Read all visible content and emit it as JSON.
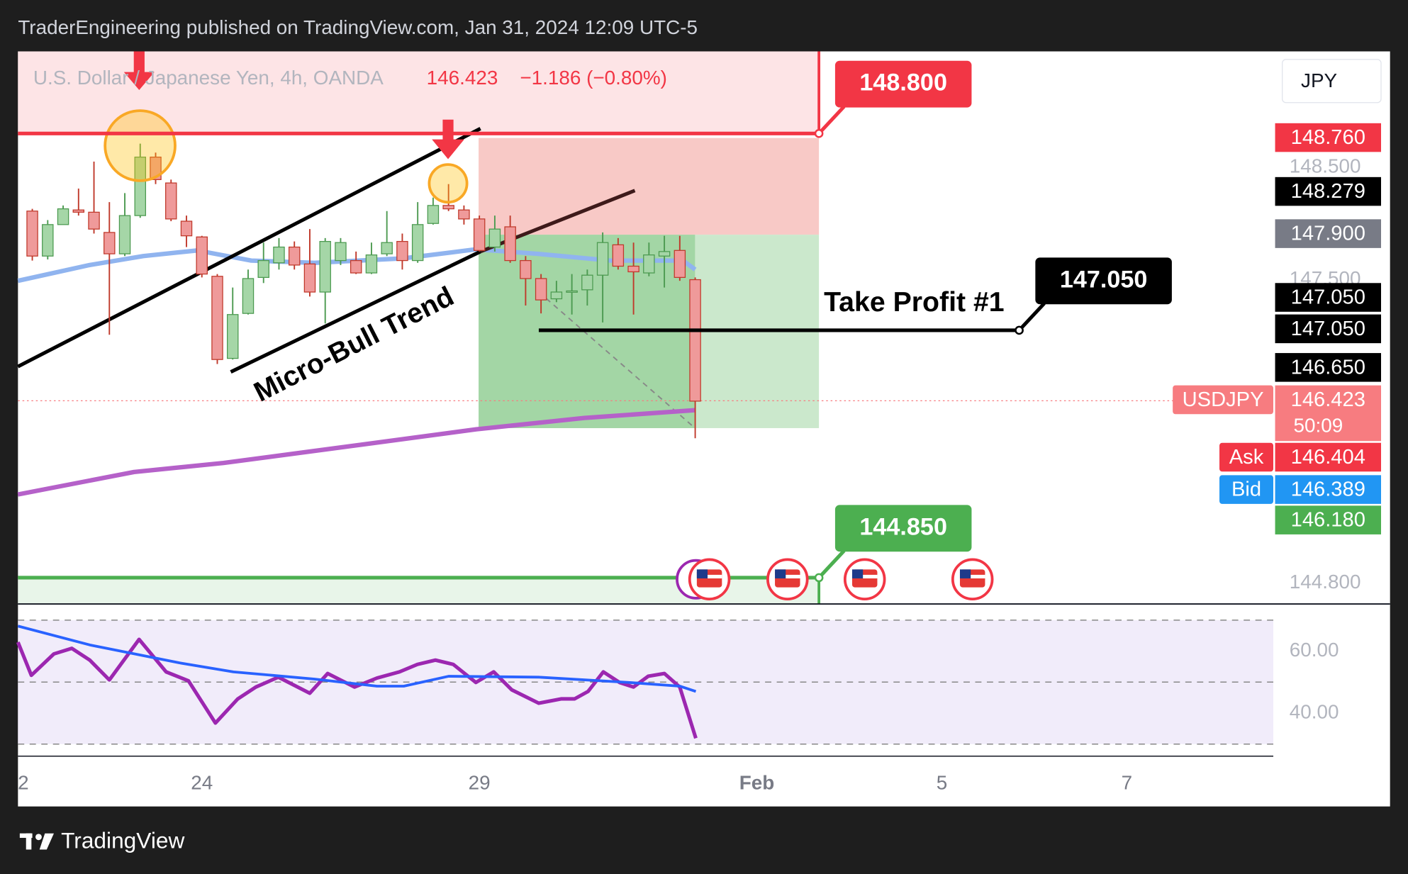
{
  "header": "TraderEngineering published on TradingView.com, Jan 31, 2024 12:09 UTC-5",
  "footer": "TradingView",
  "chart_data": [
    {
      "type": "candlestick",
      "title": "U.S. Dollar / Japanese Yen, 4h, OANDA",
      "legend_price": "146.423",
      "legend_change": "−1.186 (−0.80%)",
      "currency": "JPY",
      "symbol": "USDJPY",
      "countdown": "50:09",
      "up_color": "#a5d6a7",
      "down_color": "#ef9a9a",
      "open": [
        148.11,
        147.71,
        147.99,
        148.12,
        148.1,
        147.92,
        147.73,
        148.07,
        148.59,
        148.36,
        148.02,
        147.88,
        147.53,
        146.8,
        147.2,
        147.52,
        147.65,
        147.79,
        147.64,
        147.39,
        147.67,
        147.67,
        147.56,
        147.73,
        147.84,
        147.67,
        148.0,
        148.16,
        148.12,
        148.04,
        147.79,
        147.97,
        147.67,
        147.51,
        147.33,
        147.39,
        147.41,
        147.54,
        147.81,
        147.62,
        147.56,
        147.71,
        147.76,
        147.5
      ],
      "high": [
        148.13,
        148.03,
        148.16,
        148.31,
        148.55,
        148.19,
        148.27,
        148.71,
        148.63,
        148.39,
        148.07,
        147.89,
        147.55,
        147.43,
        147.59,
        147.83,
        147.87,
        147.84,
        147.95,
        147.87,
        147.87,
        147.75,
        147.83,
        148.11,
        147.91,
        148.19,
        148.23,
        148.35,
        148.16,
        148.07,
        148.07,
        148.07,
        147.71,
        147.55,
        147.49,
        147.55,
        147.59,
        147.92,
        147.87,
        147.83,
        147.83,
        147.89,
        147.89,
        147.52
      ],
      "low": [
        147.67,
        147.68,
        147.99,
        148.07,
        147.91,
        147.01,
        147.71,
        148.05,
        148.35,
        148.02,
        147.79,
        147.52,
        146.75,
        146.79,
        147.19,
        147.47,
        147.59,
        147.59,
        147.35,
        147.11,
        147.63,
        147.55,
        147.55,
        147.71,
        147.59,
        147.65,
        147.99,
        148.11,
        147.99,
        147.75,
        147.75,
        147.65,
        147.27,
        147.2,
        147.3,
        147.19,
        147.27,
        147.12,
        147.59,
        147.19,
        147.53,
        147.43,
        147.49,
        146.09
      ],
      "close": [
        147.71,
        147.99,
        148.13,
        148.1,
        147.95,
        147.73,
        148.07,
        148.59,
        148.39,
        148.04,
        147.89,
        147.55,
        146.79,
        147.19,
        147.51,
        147.67,
        147.79,
        147.63,
        147.39,
        147.84,
        147.83,
        147.56,
        147.72,
        147.83,
        147.67,
        147.99,
        148.16,
        148.13,
        148.04,
        147.76,
        147.95,
        147.67,
        147.51,
        147.32,
        147.39,
        147.4,
        147.54,
        147.83,
        147.62,
        147.57,
        147.72,
        147.75,
        147.52,
        146.42
      ],
      "xlim": [
        -0.93,
        80.5
      ],
      "xticks": [
        {
          "value": -1,
          "label": "2"
        },
        {
          "value": 11,
          "label": "24"
        },
        {
          "value": 29,
          "label": "29"
        },
        {
          "value": 47,
          "label": "Feb"
        },
        {
          "value": 59,
          "label": "5"
        },
        {
          "value": 71,
          "label": "7"
        }
      ],
      "ylim": [
        144.62,
        149.53
      ],
      "yticks": [
        {
          "value": 148.5,
          "label": "148.500"
        },
        {
          "value": 147.5,
          "label": "147.500"
        },
        {
          "value": 144.8,
          "label": "144.800"
        }
      ],
      "price_labels": [
        {
          "value": 148.76,
          "label": "148.760",
          "color": "#f23645"
        },
        {
          "value": 148.279,
          "label": "148.279",
          "color": "#000000"
        },
        {
          "value": 147.9,
          "label": "147.900",
          "color": "#787b86"
        },
        {
          "value": 147.05,
          "label": "147.050",
          "color": "#000000"
        },
        {
          "value": 147.05,
          "label": "147.050",
          "color": "#000000"
        },
        {
          "value": 146.65,
          "label": "146.650",
          "color": "#000000"
        },
        {
          "value": 146.423,
          "label": "146.423",
          "color": "#f77c80"
        },
        {
          "value": 146.404,
          "label": "146.404",
          "color": "#f23645",
          "tag": "Ask"
        },
        {
          "value": 146.389,
          "label": "146.389",
          "color": "#2196f3",
          "tag": "Bid"
        },
        {
          "value": 146.18,
          "label": "146.180",
          "color": "#4caf50"
        }
      ],
      "levels": [
        {
          "value": 148.8,
          "label": "148.800",
          "color": "#f23645"
        },
        {
          "value": 147.05,
          "label": "147.050",
          "color": "#000000"
        },
        {
          "value": 144.85,
          "label": "144.850",
          "color": "#4caf50"
        }
      ],
      "annotations": [
        "Micro-Bull Trend",
        "Take Profit #1"
      ],
      "ma": [
        {
          "color": "#90b4ef",
          "x": [
            -0.93,
            3.7,
            7.2,
            10.7,
            14.2,
            18.3,
            24.1,
            28.8,
            32.8,
            37.5,
            42.2,
            43
          ],
          "values": [
            147.49,
            147.63,
            147.71,
            147.76,
            147.67,
            147.65,
            147.69,
            147.77,
            147.73,
            147.67,
            147.67,
            147.59
          ]
        },
        {
          "color": "#b561c9",
          "x": [
            -0.93,
            6.6,
            12.4,
            21.2,
            28.8,
            35.8,
            43
          ],
          "values": [
            145.59,
            145.79,
            145.87,
            146.03,
            146.17,
            146.27,
            146.34
          ]
        }
      ]
    },
    {
      "type": "line",
      "xlim": [
        -0.93,
        80.5
      ],
      "ylim": [
        26.1,
        75.07
      ],
      "yticks": [
        {
          "value": 60,
          "label": "60.00"
        },
        {
          "value": 40,
          "label": "40.00"
        }
      ],
      "bands": [
        70,
        50,
        30
      ],
      "series": [
        {
          "color": "#9c27b0",
          "x": [
            -0.93,
            -0.06,
            1.4,
            2.56,
            3.73,
            5.0,
            6.93,
            8.68,
            10.13,
            11.88,
            13.33,
            14.5,
            15.96,
            18.0,
            19.16,
            20.9,
            22.36,
            23.82,
            24.98,
            26.15,
            27.31,
            28.77,
            29.93,
            31.1,
            32.85,
            34.3,
            35.18,
            36.05,
            37.04,
            38.09,
            39.0,
            39.95,
            41.0,
            42.0,
            43.04
          ],
          "values": [
            62.9,
            52.2,
            59.1,
            60.9,
            57.1,
            50.7,
            63.8,
            53.3,
            50.4,
            36.8,
            44.6,
            48.4,
            51.6,
            46.4,
            52.8,
            48.4,
            51.3,
            53.3,
            55.7,
            57.1,
            55.7,
            49.9,
            53.3,
            47.5,
            43.2,
            44.6,
            44.6,
            47.0,
            53.3,
            49.9,
            48.4,
            51.9,
            52.8,
            48.4,
            31.9
          ]
        },
        {
          "color": "#2962ff",
          "x": [
            -0.93,
            3.73,
            9.55,
            13.05,
            18.3,
            22.36,
            24.1,
            27.0,
            32.85,
            38.67,
            42.0,
            43.04
          ],
          "values": [
            68.1,
            62.0,
            56.2,
            53.3,
            51.0,
            48.7,
            48.7,
            51.9,
            51.6,
            49.9,
            48.7,
            47.0
          ]
        }
      ]
    }
  ]
}
